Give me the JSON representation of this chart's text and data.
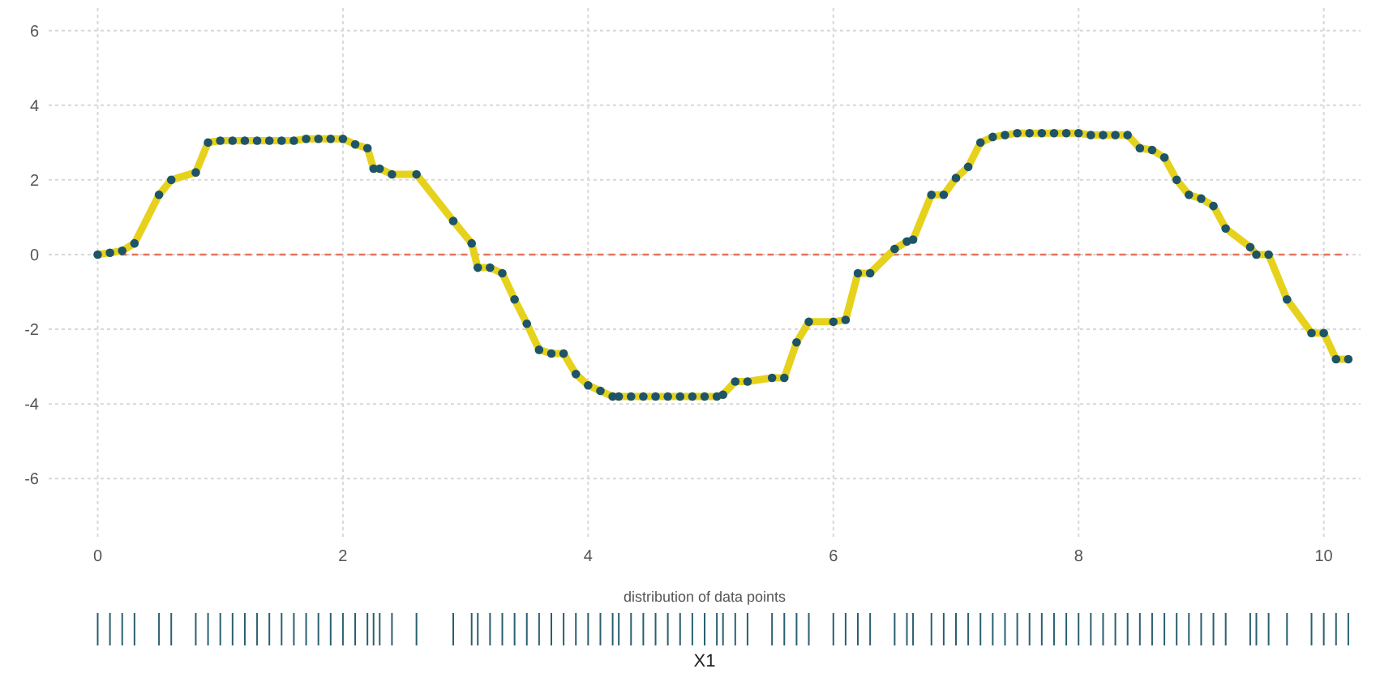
{
  "chart_data": {
    "type": "line",
    "xlabel": "X1",
    "annotations": [
      "distribution of data points"
    ],
    "x": [
      0,
      0.1,
      0.2,
      0.3,
      0.5,
      0.6,
      0.8,
      0.9,
      1.0,
      1.1,
      1.2,
      1.3,
      1.4,
      1.5,
      1.6,
      1.7,
      1.8,
      1.9,
      2.0,
      2.1,
      2.2,
      2.25,
      2.3,
      2.4,
      2.6,
      2.9,
      3.05,
      3.1,
      3.2,
      3.3,
      3.4,
      3.5,
      3.6,
      3.7,
      3.8,
      3.9,
      4.0,
      4.1,
      4.2,
      4.25,
      4.35,
      4.45,
      4.55,
      4.65,
      4.75,
      4.85,
      4.95,
      5.05,
      5.1,
      5.2,
      5.3,
      5.5,
      5.6,
      5.7,
      5.8,
      6.0,
      6.1,
      6.2,
      6.3,
      6.5,
      6.6,
      6.65,
      6.8,
      6.9,
      7.0,
      7.1,
      7.2,
      7.3,
      7.4,
      7.5,
      7.6,
      7.7,
      7.8,
      7.9,
      8.0,
      8.1,
      8.2,
      8.3,
      8.4,
      8.5,
      8.6,
      8.7,
      8.8,
      8.9,
      9.0,
      9.1,
      9.2,
      9.4,
      9.45,
      9.55,
      9.7,
      9.9,
      10.0,
      10.1,
      10.2
    ],
    "series": [
      {
        "color": "#e6d21c",
        "values": [
          0,
          0.05,
          0.1,
          0.3,
          1.6,
          2.0,
          2.2,
          3.0,
          3.05,
          3.05,
          3.05,
          3.05,
          3.05,
          3.05,
          3.05,
          3.1,
          3.1,
          3.1,
          3.1,
          2.95,
          2.85,
          2.3,
          2.3,
          2.15,
          2.15,
          0.9,
          0.3,
          -0.35,
          -0.35,
          -0.5,
          -1.2,
          -1.85,
          -2.55,
          -2.65,
          -2.65,
          -3.2,
          -3.5,
          -3.65,
          -3.8,
          -3.8,
          -3.8,
          -3.8,
          -3.8,
          -3.8,
          -3.8,
          -3.8,
          -3.8,
          -3.8,
          -3.75,
          -3.4,
          -3.4,
          -3.3,
          -3.3,
          -2.35,
          -1.8,
          -1.8,
          -1.75,
          -0.5,
          -0.5,
          0.15,
          0.35,
          0.4,
          1.6,
          1.6,
          2.05,
          2.35,
          3.0,
          3.15,
          3.2,
          3.25,
          3.25,
          3.25,
          3.25,
          3.25,
          3.25,
          3.2,
          3.2,
          3.2,
          3.2,
          2.85,
          2.8,
          2.6,
          2.0,
          1.6,
          1.5,
          1.3,
          0.7,
          0.2,
          0,
          0,
          -1.2,
          -2.1,
          -2.1,
          -2.8,
          -2.8
        ]
      }
    ],
    "xlim": [
      -0.4,
      10.3
    ],
    "ylim": [
      -7.6,
      6.6
    ],
    "xticks": [
      0,
      2,
      4,
      6,
      8,
      10
    ],
    "yticks": [
      -6,
      -4,
      -2,
      0,
      2,
      4,
      6
    ],
    "grid": true,
    "marker": "circle",
    "line_style": "solid",
    "ref_lines": [
      {
        "axis": "y",
        "value": 0,
        "color": "#e8735a",
        "line_style": "dashed"
      }
    ]
  }
}
